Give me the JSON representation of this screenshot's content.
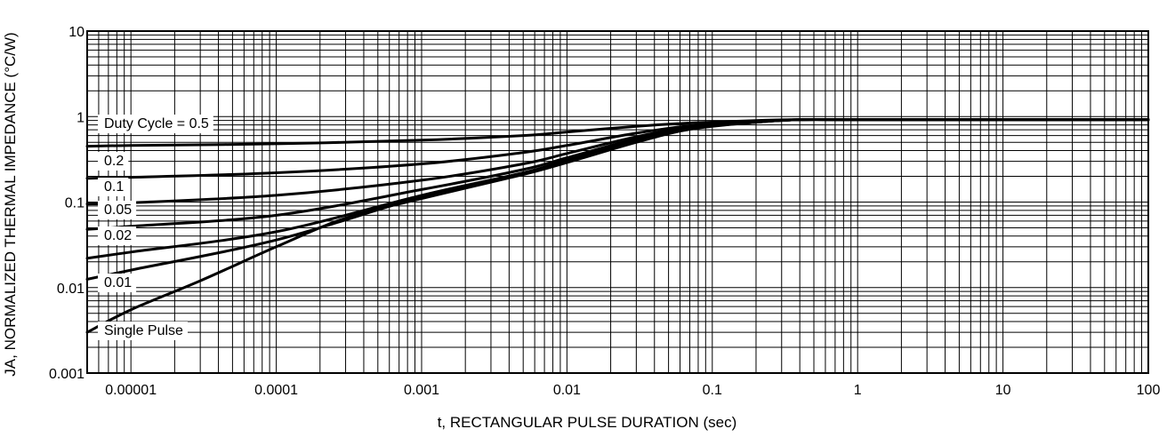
{
  "chart_data": {
    "type": "line",
    "xscale": "log",
    "yscale": "log",
    "xlim": [
      5e-06,
      100
    ],
    "ylim": [
      0.001,
      10
    ],
    "xlabel": "t, RECTANGULAR PULSE DURATION (sec)",
    "ylabel": "JA, NORMALIZED THERMAL IMPEDANCE (°C/W)",
    "x_tick_labels": [
      "0.00001",
      "0.0001",
      "0.001",
      "0.01",
      "0.1",
      "1",
      "10",
      "100"
    ],
    "x_ticks": [
      1e-05,
      0.0001,
      0.001,
      0.01,
      0.1,
      1,
      10,
      100
    ],
    "y_tick_labels": [
      "10",
      "1",
      "0.1",
      "0.01",
      "0.001"
    ],
    "y_ticks": [
      10,
      1,
      0.1,
      0.01,
      0.001
    ],
    "grid": true,
    "series": [
      {
        "name": "Duty Cycle = 0.5",
        "x": [
          5e-06,
          1e-05,
          0.0001,
          0.001,
          0.005,
          0.01,
          0.03,
          0.07,
          0.2,
          0.4,
          1,
          10,
          100
        ],
        "y": [
          0.45,
          0.46,
          0.48,
          0.53,
          0.6,
          0.66,
          0.77,
          0.84,
          0.9,
          0.92,
          0.92,
          0.92,
          0.92
        ]
      },
      {
        "name": "0.2",
        "x": [
          5e-06,
          1e-05,
          0.0001,
          0.001,
          0.005,
          0.01,
          0.03,
          0.07,
          0.2,
          0.4,
          1,
          10,
          100
        ],
        "y": [
          0.19,
          0.195,
          0.22,
          0.28,
          0.38,
          0.46,
          0.64,
          0.78,
          0.88,
          0.92,
          0.92,
          0.92,
          0.92
        ]
      },
      {
        "name": "0.1",
        "x": [
          5e-06,
          1e-05,
          0.0001,
          0.001,
          0.005,
          0.01,
          0.03,
          0.07,
          0.2,
          0.4,
          1,
          10,
          100
        ],
        "y": [
          0.095,
          0.098,
          0.12,
          0.18,
          0.28,
          0.37,
          0.58,
          0.75,
          0.87,
          0.92,
          0.92,
          0.92,
          0.92
        ]
      },
      {
        "name": "0.05",
        "x": [
          5e-06,
          1e-05,
          0.0001,
          0.001,
          0.005,
          0.01,
          0.03,
          0.07,
          0.2,
          0.4,
          1,
          10,
          100
        ],
        "y": [
          0.048,
          0.052,
          0.07,
          0.14,
          0.24,
          0.33,
          0.55,
          0.74,
          0.87,
          0.92,
          0.92,
          0.92,
          0.92
        ]
      },
      {
        "name": "0.02",
        "x": [
          5e-06,
          1e-05,
          0.0001,
          0.001,
          0.005,
          0.01,
          0.03,
          0.07,
          0.2,
          0.4,
          1,
          10,
          100
        ],
        "y": [
          0.022,
          0.026,
          0.045,
          0.12,
          0.22,
          0.31,
          0.53,
          0.73,
          0.86,
          0.92,
          0.92,
          0.92,
          0.92
        ]
      },
      {
        "name": "0.01",
        "x": [
          5e-06,
          1e-05,
          0.0001,
          0.001,
          0.005,
          0.01,
          0.03,
          0.07,
          0.2,
          0.4,
          1,
          10,
          100
        ],
        "y": [
          0.0125,
          0.016,
          0.036,
          0.115,
          0.215,
          0.3,
          0.52,
          0.72,
          0.86,
          0.92,
          0.92,
          0.92,
          0.92
        ]
      },
      {
        "name": "Single Pulse",
        "x": [
          5e-06,
          1e-05,
          3e-05,
          0.0001,
          0.0003,
          0.001,
          0.005,
          0.01,
          0.03,
          0.07,
          0.2,
          0.4,
          1,
          10,
          100
        ],
        "y": [
          0.003,
          0.0055,
          0.012,
          0.03,
          0.065,
          0.11,
          0.21,
          0.29,
          0.5,
          0.71,
          0.86,
          0.92,
          0.92,
          0.92,
          0.92
        ]
      }
    ]
  }
}
